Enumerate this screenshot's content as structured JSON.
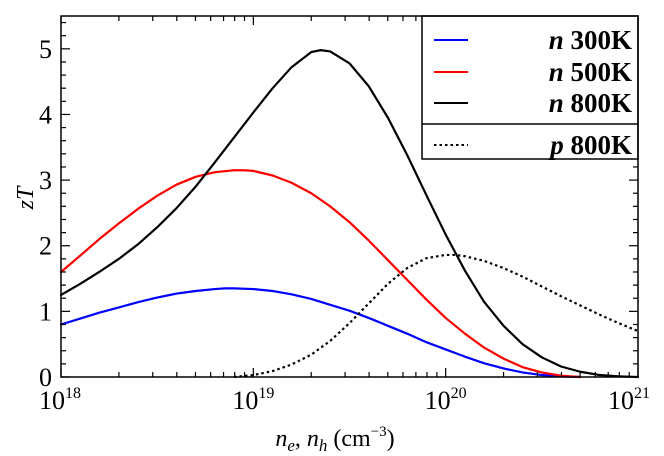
{
  "chart_data": {
    "type": "line",
    "title": "",
    "xlabel": "n_e, n_h (cm^-3)",
    "ylabel": "zT",
    "xscale": "log",
    "xlim": [
      1e+18,
      1e+21
    ],
    "ylim": [
      0,
      5.5
    ],
    "grid": false,
    "legend_position": "top-right",
    "x_ticks": [
      {
        "value": 1e+18,
        "base": "10",
        "exp": "18"
      },
      {
        "value": 1e+19,
        "base": "10",
        "exp": "19"
      },
      {
        "value": 1e+20,
        "base": "10",
        "exp": "20"
      },
      {
        "value": 1e+21,
        "base": "10",
        "exp": "21"
      }
    ],
    "y_ticks": [
      {
        "value": 0,
        "label": "0"
      },
      {
        "value": 1,
        "label": "1"
      },
      {
        "value": 2,
        "label": "2"
      },
      {
        "value": 3,
        "label": "3"
      },
      {
        "value": 4,
        "label": "4"
      },
      {
        "value": 5,
        "label": "5"
      }
    ],
    "x_label_parts": {
      "ne": "n",
      "ne_sub": "e",
      "sep": ", ",
      "nh": "n",
      "nh_sub": "h",
      "unit": " (cm",
      "unit_exp": "−3",
      "unit_close": ")"
    },
    "y_label_parts": {
      "z": "z",
      "T": "T"
    },
    "series": [
      {
        "name": "n 300K",
        "carrier": "n",
        "temp": "300K",
        "color": "#0000ff",
        "dash": "solid",
        "points": [
          [
            1e+18,
            0.8
          ],
          [
            1.26e+18,
            0.89
          ],
          [
            1.58e+18,
            0.98
          ],
          [
            2e+18,
            1.06
          ],
          [
            2.51e+18,
            1.14
          ],
          [
            3.16e+18,
            1.21
          ],
          [
            3.98e+18,
            1.27
          ],
          [
            5.01e+18,
            1.31
          ],
          [
            6.31e+18,
            1.34
          ],
          [
            7.08e+18,
            1.35
          ],
          [
            7.94e+18,
            1.35
          ],
          [
            1e+19,
            1.34
          ],
          [
            1.26e+19,
            1.31
          ],
          [
            1.58e+19,
            1.26
          ],
          [
            2e+19,
            1.19
          ],
          [
            2.51e+19,
            1.1
          ],
          [
            3.16e+19,
            1.01
          ],
          [
            3.98e+19,
            0.9
          ],
          [
            5.01e+19,
            0.78
          ],
          [
            6.31e+19,
            0.66
          ],
          [
            7.94e+19,
            0.53
          ],
          [
            1e+20,
            0.42
          ],
          [
            1.26e+20,
            0.31
          ],
          [
            1.58e+20,
            0.21
          ],
          [
            2e+20,
            0.13
          ],
          [
            2.51e+20,
            0.07
          ],
          [
            3.16e+20,
            0.03
          ],
          [
            3.98e+20,
            0.01
          ],
          [
            5e+20,
            0.0
          ]
        ]
      },
      {
        "name": "n 500K",
        "carrier": "n",
        "temp": "500K",
        "color": "#ff0000",
        "dash": "solid",
        "points": [
          [
            1e+18,
            1.6
          ],
          [
            1.26e+18,
            1.85
          ],
          [
            1.58e+18,
            2.1
          ],
          [
            2e+18,
            2.34
          ],
          [
            2.51e+18,
            2.56
          ],
          [
            3.16e+18,
            2.76
          ],
          [
            3.98e+18,
            2.93
          ],
          [
            5.01e+18,
            3.05
          ],
          [
            6.31e+18,
            3.12
          ],
          [
            7.94e+18,
            3.15
          ],
          [
            8.91e+18,
            3.15
          ],
          [
            1e+19,
            3.14
          ],
          [
            1.26e+19,
            3.07
          ],
          [
            1.58e+19,
            2.96
          ],
          [
            2e+19,
            2.8
          ],
          [
            2.51e+19,
            2.6
          ],
          [
            3.16e+19,
            2.36
          ],
          [
            3.98e+19,
            2.08
          ],
          [
            5.01e+19,
            1.78
          ],
          [
            6.31e+19,
            1.48
          ],
          [
            7.94e+19,
            1.18
          ],
          [
            1e+20,
            0.9
          ],
          [
            1.26e+20,
            0.66
          ],
          [
            1.58e+20,
            0.45
          ],
          [
            2e+20,
            0.28
          ],
          [
            2.51e+20,
            0.15
          ],
          [
            3.16e+20,
            0.07
          ],
          [
            3.98e+20,
            0.02
          ],
          [
            5e+20,
            0.0
          ]
        ]
      },
      {
        "name": "n 800K",
        "carrier": "n",
        "temp": "800K",
        "color": "#000000",
        "dash": "solid",
        "points": [
          [
            1e+18,
            1.25
          ],
          [
            1.26e+18,
            1.42
          ],
          [
            1.58e+18,
            1.6
          ],
          [
            2e+18,
            1.8
          ],
          [
            2.51e+18,
            2.02
          ],
          [
            3.16e+18,
            2.28
          ],
          [
            3.98e+18,
            2.57
          ],
          [
            5.01e+18,
            2.9
          ],
          [
            6.31e+18,
            3.27
          ],
          [
            7.94e+18,
            3.65
          ],
          [
            1e+19,
            4.03
          ],
          [
            1.26e+19,
            4.4
          ],
          [
            1.58e+19,
            4.72
          ],
          [
            2e+19,
            4.95
          ],
          [
            2.24e+19,
            4.98
          ],
          [
            2.51e+19,
            4.96
          ],
          [
            3.16e+19,
            4.78
          ],
          [
            3.98e+19,
            4.43
          ],
          [
            5.01e+19,
            3.95
          ],
          [
            6.31e+19,
            3.38
          ],
          [
            7.94e+19,
            2.77
          ],
          [
            1e+20,
            2.17
          ],
          [
            1.26e+20,
            1.62
          ],
          [
            1.58e+20,
            1.15
          ],
          [
            2e+20,
            0.78
          ],
          [
            2.51e+20,
            0.5
          ],
          [
            3.16e+20,
            0.3
          ],
          [
            3.98e+20,
            0.16
          ],
          [
            5.01e+20,
            0.08
          ],
          [
            6.31e+20,
            0.03
          ],
          [
            7.94e+20,
            0.01
          ],
          [
            1e+21,
            0.0
          ]
        ]
      },
      {
        "name": "p 800K",
        "carrier": "p",
        "temp": "800K",
        "color": "#000000",
        "dash": "dotted",
        "points": [
          [
            7.94e+18,
            0.0
          ],
          [
            1e+19,
            0.03
          ],
          [
            1.26e+19,
            0.09
          ],
          [
            1.58e+19,
            0.19
          ],
          [
            2e+19,
            0.34
          ],
          [
            2.51e+19,
            0.55
          ],
          [
            3.16e+19,
            0.82
          ],
          [
            3.98e+19,
            1.12
          ],
          [
            5.01e+19,
            1.42
          ],
          [
            6.31e+19,
            1.66
          ],
          [
            7.94e+19,
            1.81
          ],
          [
            1e+20,
            1.86
          ],
          [
            1.12e+20,
            1.86
          ],
          [
            1.26e+20,
            1.84
          ],
          [
            1.58e+20,
            1.77
          ],
          [
            2e+20,
            1.66
          ],
          [
            2.51e+20,
            1.53
          ],
          [
            3.16e+20,
            1.38
          ],
          [
            3.98e+20,
            1.23
          ],
          [
            5.01e+20,
            1.09
          ],
          [
            6.31e+20,
            0.95
          ],
          [
            7.94e+20,
            0.82
          ],
          [
            1e+21,
            0.7
          ]
        ]
      }
    ]
  }
}
